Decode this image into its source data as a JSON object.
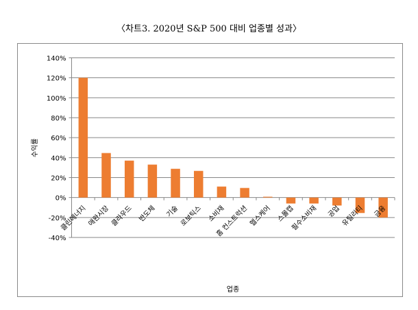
{
  "chart_data": {
    "type": "bar",
    "title": "〈차트3. 2020년 S&P 500 대비 업종별 성과〉",
    "xlabel": "업종",
    "ylabel": "수익률",
    "categories": [
      "클린에너지",
      "애완시장",
      "클라우드",
      "반도체",
      "기술",
      "로보틱스",
      "소비재",
      "홈 컨스트럭션",
      "헬스케어",
      "스몰캡",
      "필수소비재",
      "공업",
      "유틸리티",
      "금융"
    ],
    "values": [
      120,
      44.6,
      37,
      33,
      28.8,
      26.7,
      11,
      9.6,
      0.8,
      -6,
      -6,
      -8,
      -15.5,
      -20
    ],
    "unit": "%",
    "ylim": [
      -40,
      140
    ],
    "yticks": [
      "-40%",
      "-20%",
      "0%",
      "20%",
      "40%",
      "60%",
      "80%",
      "100%",
      "120%",
      "140%"
    ],
    "grid": true,
    "legend": "none",
    "bar_color": "#ED7D31"
  }
}
